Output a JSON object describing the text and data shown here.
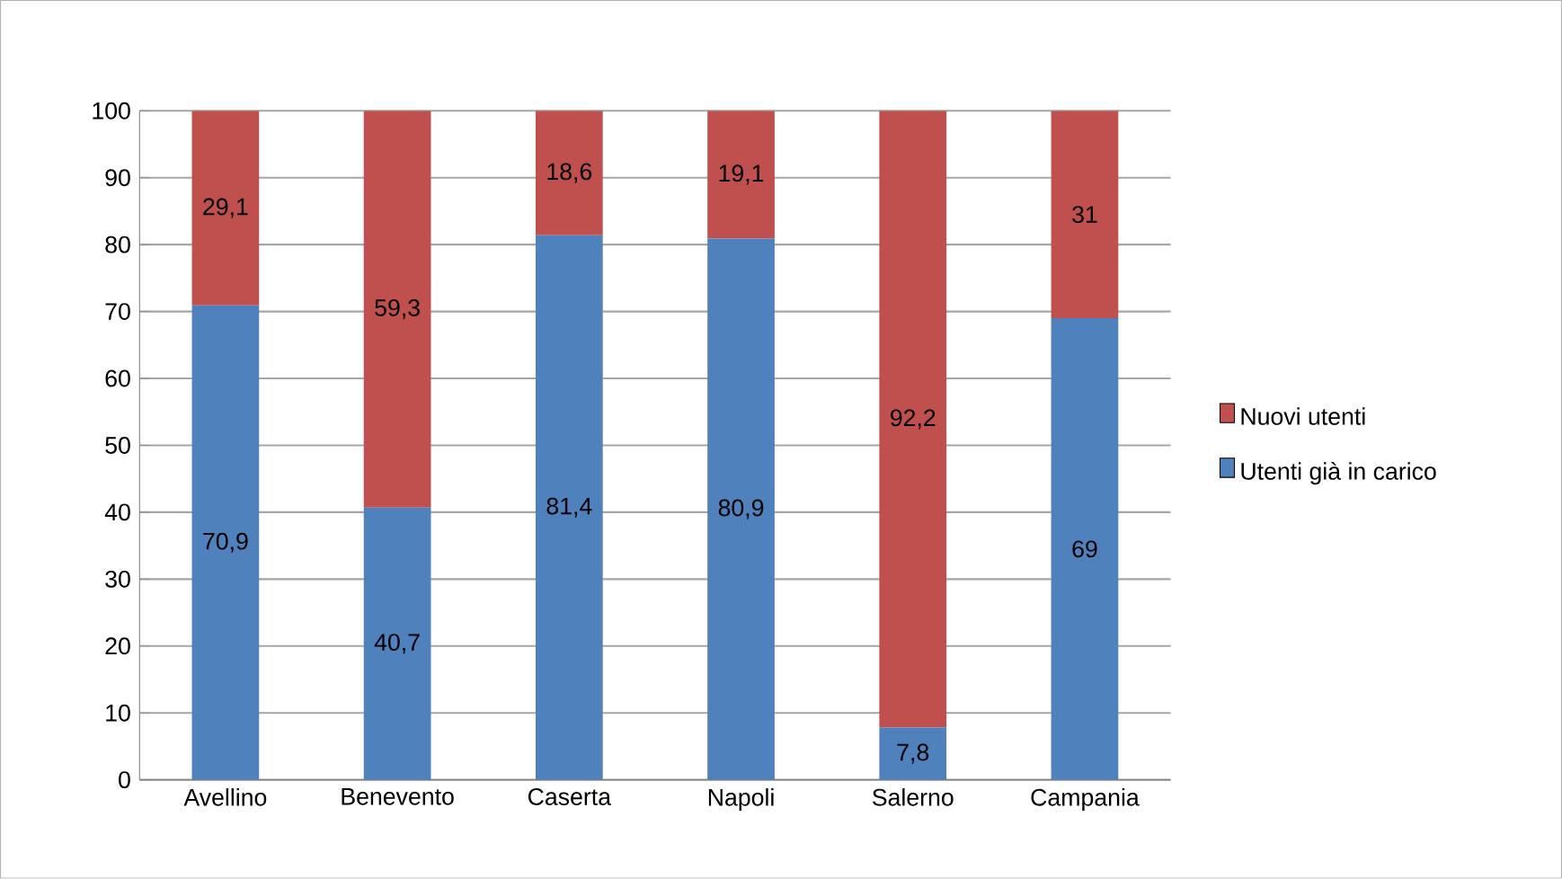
{
  "chart_data": {
    "type": "bar",
    "stacked": true,
    "categories": [
      "Avellino",
      "Benevento",
      "Caserta",
      "Napoli",
      "Salerno",
      "Campania"
    ],
    "series": [
      {
        "name": "Utenti già in carico",
        "color": "#4f81bd",
        "values": [
          70.9,
          40.7,
          81.4,
          80.9,
          7.8,
          69
        ],
        "value_labels": [
          "70,9",
          "40,7",
          "81,4",
          "80,9",
          "7,8",
          "69"
        ]
      },
      {
        "name": "Nuovi utenti",
        "color": "#c0504d",
        "values": [
          29.1,
          59.3,
          18.6,
          19.1,
          92.2,
          31
        ],
        "value_labels": [
          "29,1",
          "59,3",
          "18,6",
          "19,1",
          "92,2",
          "31"
        ]
      }
    ],
    "ylim": [
      0,
      100
    ],
    "yticks": [
      0,
      10,
      20,
      30,
      40,
      50,
      60,
      70,
      80,
      90,
      100
    ],
    "grid": "y",
    "legend": "right"
  }
}
